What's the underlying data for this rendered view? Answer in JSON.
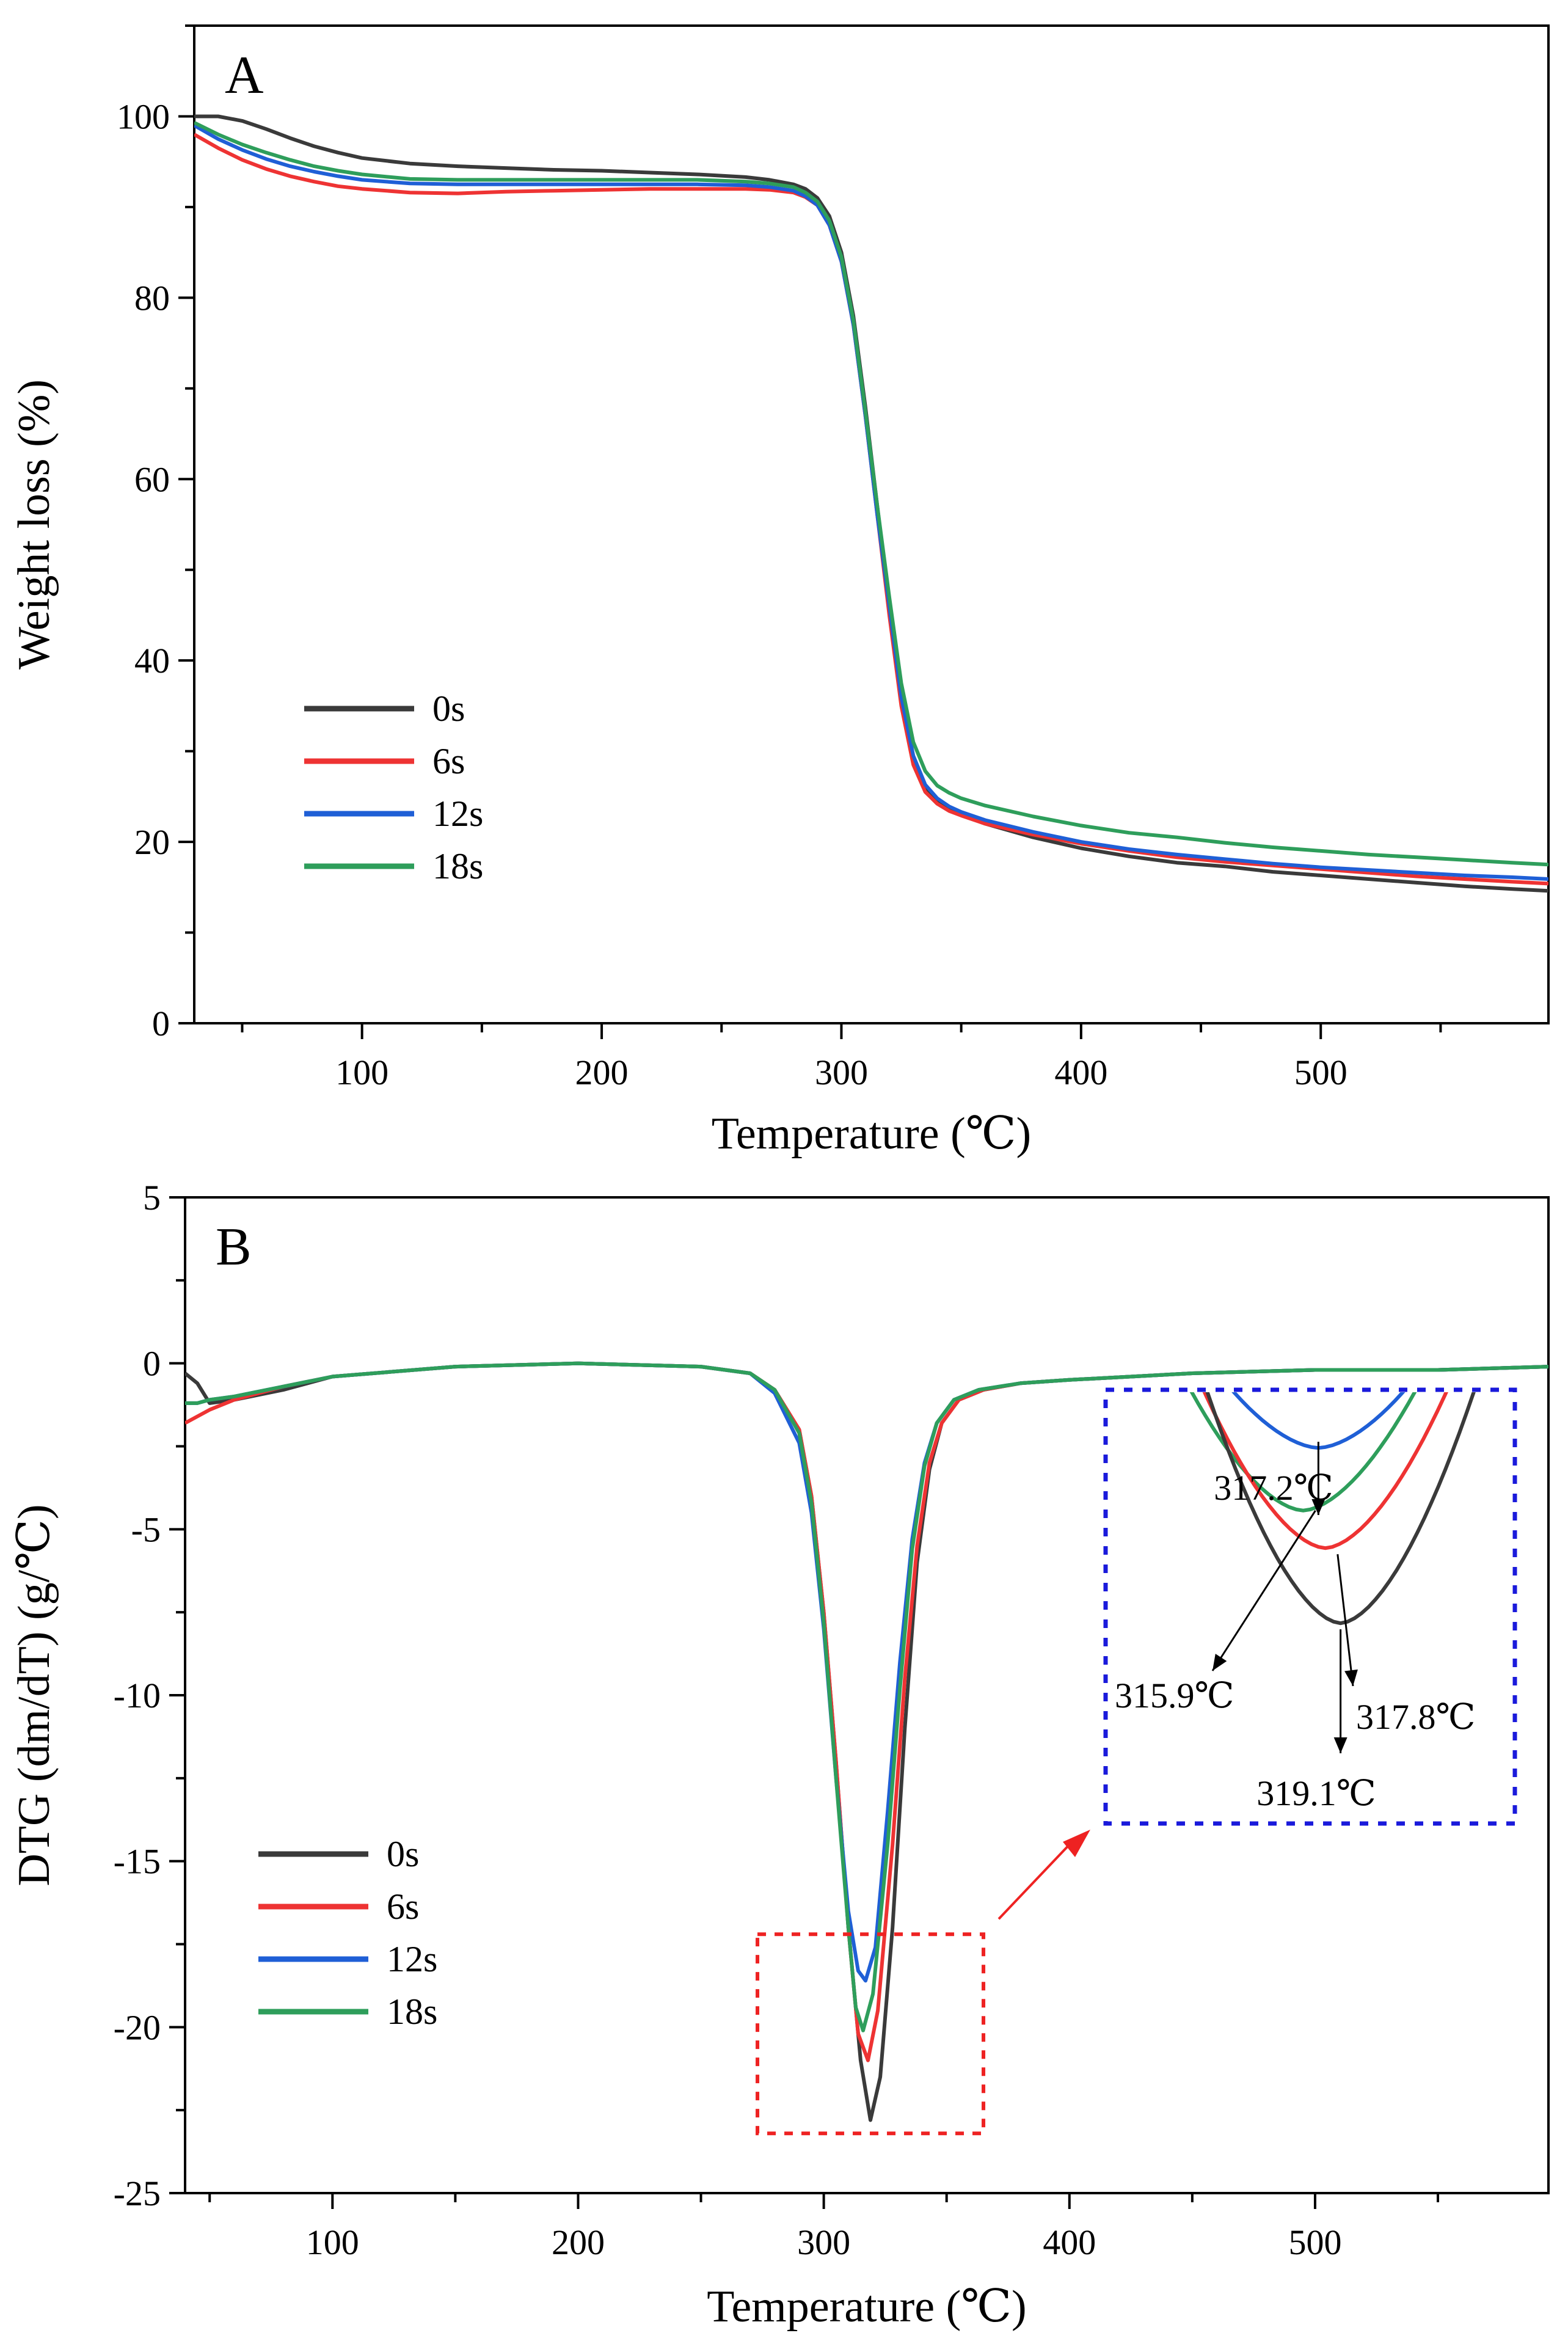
{
  "colors": {
    "0s": "#3a3a3a",
    "6s": "#ee3333",
    "12s": "#1f5fd6",
    "18s": "#2e9e5b",
    "zoom_box": "#ee2222",
    "inset_box": "#1a1adb"
  },
  "chart_data": [
    {
      "type": "line",
      "panel": "A",
      "title": "",
      "xlabel": "Temperature (℃)",
      "ylabel": "Weight loss (%)",
      "xlim": [
        30,
        595
      ],
      "ylim": [
        0,
        110
      ],
      "xticks": [
        100,
        200,
        300,
        400,
        500
      ],
      "yticks": [
        0,
        20,
        40,
        60,
        80,
        100
      ],
      "legend": {
        "placement": "lower-left",
        "entries": [
          "0s",
          "6s",
          "12s",
          "18s"
        ]
      },
      "series": [
        {
          "name": "0s",
          "color_key": "0s",
          "x": [
            30,
            40,
            50,
            60,
            70,
            80,
            90,
            100,
            120,
            140,
            160,
            180,
            200,
            220,
            240,
            260,
            270,
            280,
            285,
            290,
            295,
            300,
            305,
            310,
            315,
            320,
            325,
            330,
            335,
            340,
            345,
            350,
            360,
            380,
            400,
            420,
            440,
            460,
            480,
            500,
            520,
            540,
            560,
            580,
            595
          ],
          "y": [
            100,
            100,
            99.5,
            98.6,
            97.6,
            96.7,
            96,
            95.4,
            94.8,
            94.5,
            94.3,
            94.1,
            94,
            93.8,
            93.6,
            93.3,
            93,
            92.5,
            92,
            91,
            89,
            85,
            78,
            68,
            57,
            46,
            36,
            29,
            26,
            24.5,
            23.5,
            23,
            22,
            20.5,
            19.3,
            18.4,
            17.7,
            17.3,
            16.7,
            16.3,
            15.9,
            15.5,
            15.1,
            14.8,
            14.6
          ]
        },
        {
          "name": "6s",
          "color_key": "6s",
          "x": [
            30,
            40,
            50,
            60,
            70,
            80,
            90,
            100,
            120,
            140,
            160,
            180,
            200,
            220,
            240,
            260,
            270,
            280,
            285,
            290,
            295,
            300,
            305,
            310,
            315,
            320,
            325,
            330,
            335,
            340,
            345,
            350,
            360,
            380,
            400,
            420,
            440,
            460,
            480,
            500,
            520,
            540,
            560,
            580,
            595
          ],
          "y": [
            98,
            96.5,
            95.2,
            94.2,
            93.4,
            92.8,
            92.3,
            92,
            91.6,
            91.5,
            91.7,
            91.8,
            91.9,
            92,
            92,
            92,
            91.9,
            91.6,
            91.1,
            90.2,
            88,
            84,
            77,
            67,
            56,
            45,
            35,
            28.5,
            25.5,
            24.2,
            23.4,
            22.9,
            22,
            20.8,
            19.8,
            19,
            18.3,
            17.8,
            17.4,
            17,
            16.6,
            16.2,
            15.9,
            15.6,
            15.4
          ]
        },
        {
          "name": "12s",
          "color_key": "12s",
          "x": [
            30,
            40,
            50,
            60,
            70,
            80,
            90,
            100,
            120,
            140,
            160,
            180,
            200,
            220,
            240,
            260,
            270,
            280,
            285,
            290,
            295,
            300,
            305,
            310,
            315,
            320,
            325,
            330,
            335,
            340,
            345,
            350,
            360,
            380,
            400,
            420,
            440,
            460,
            480,
            500,
            520,
            540,
            560,
            580,
            595
          ],
          "y": [
            99,
            97.5,
            96.3,
            95.3,
            94.5,
            93.9,
            93.4,
            93,
            92.6,
            92.5,
            92.5,
            92.5,
            92.5,
            92.5,
            92.5,
            92.4,
            92.2,
            91.8,
            91.2,
            90.2,
            88,
            84,
            77,
            67,
            56,
            46,
            36,
            29.5,
            26.3,
            24.8,
            23.9,
            23.3,
            22.4,
            21.1,
            20,
            19.2,
            18.6,
            18.1,
            17.6,
            17.2,
            16.9,
            16.6,
            16.3,
            16.1,
            15.9
          ]
        },
        {
          "name": "18s",
          "color_key": "18s",
          "x": [
            30,
            40,
            50,
            60,
            70,
            80,
            90,
            100,
            120,
            140,
            160,
            180,
            200,
            220,
            240,
            260,
            270,
            280,
            285,
            290,
            295,
            300,
            305,
            310,
            315,
            320,
            325,
            330,
            335,
            340,
            345,
            350,
            360,
            380,
            400,
            420,
            440,
            460,
            480,
            500,
            520,
            540,
            560,
            580,
            595
          ],
          "y": [
            99.3,
            98,
            96.9,
            96,
            95.2,
            94.5,
            94,
            93.6,
            93.1,
            93,
            93,
            93,
            93,
            93,
            93,
            92.8,
            92.6,
            92.2,
            91.6,
            90.6,
            88.5,
            84.5,
            77.5,
            67.5,
            57,
            47,
            37.5,
            31,
            27.8,
            26.2,
            25.4,
            24.8,
            24,
            22.8,
            21.8,
            21,
            20.5,
            19.9,
            19.4,
            19,
            18.6,
            18.3,
            18,
            17.7,
            17.5
          ]
        }
      ]
    },
    {
      "type": "line",
      "panel": "B",
      "title": "",
      "xlabel": "Temperature (℃)",
      "ylabel": "DTG (dm/dT) (g/℃)",
      "xlim": [
        40,
        595
      ],
      "ylim": [
        -25,
        5
      ],
      "xticks": [
        100,
        200,
        300,
        400,
        500
      ],
      "yticks": [
        -25,
        -20,
        -15,
        -10,
        -5,
        0,
        5
      ],
      "legend": {
        "placement": "lower-left",
        "entries": [
          "0s",
          "6s",
          "12s",
          "18s"
        ]
      },
      "zoom_region": {
        "x": [
          273,
          365
        ],
        "y": [
          -23.2,
          -17.2
        ]
      },
      "series": [
        {
          "name": "0s",
          "color_key": "0s",
          "x": [
            40,
            45,
            50,
            60,
            80,
            100,
            150,
            200,
            250,
            270,
            280,
            290,
            295,
            300,
            305,
            310,
            315,
            319,
            323,
            328,
            333,
            338,
            343,
            348,
            355,
            365,
            380,
            400,
            450,
            500,
            550,
            595
          ],
          "y": [
            -0.3,
            -0.6,
            -1.2,
            -1.1,
            -0.8,
            -0.4,
            -0.1,
            0,
            -0.1,
            -0.3,
            -0.8,
            -2,
            -4,
            -7.5,
            -12,
            -17,
            -21,
            -22.8,
            -21.5,
            -17,
            -11,
            -6,
            -3.2,
            -1.8,
            -1.1,
            -0.8,
            -0.6,
            -0.5,
            -0.3,
            -0.2,
            -0.2,
            -0.1
          ]
        },
        {
          "name": "6s",
          "color_key": "6s",
          "x": [
            40,
            45,
            50,
            60,
            80,
            100,
            150,
            200,
            250,
            270,
            280,
            290,
            295,
            300,
            305,
            310,
            314,
            318,
            322,
            328,
            333,
            338,
            343,
            348,
            355,
            365,
            380,
            400,
            450,
            500,
            550,
            595
          ],
          "y": [
            -1.8,
            -1.6,
            -1.4,
            -1.1,
            -0.7,
            -0.4,
            -0.1,
            0,
            -0.1,
            -0.3,
            -0.8,
            -2,
            -4,
            -7.5,
            -12,
            -17,
            -20.2,
            -21,
            -19.5,
            -14.5,
            -9.5,
            -5.5,
            -3,
            -1.8,
            -1.1,
            -0.8,
            -0.6,
            -0.5,
            -0.3,
            -0.2,
            -0.2,
            -0.1
          ]
        },
        {
          "name": "12s",
          "color_key": "12s",
          "x": [
            40,
            45,
            50,
            60,
            80,
            100,
            150,
            200,
            250,
            270,
            280,
            290,
            295,
            300,
            305,
            310,
            314,
            317,
            321,
            326,
            331,
            336,
            341,
            346,
            353,
            363,
            380,
            400,
            450,
            500,
            550,
            595
          ],
          "y": [
            -1.2,
            -1.2,
            -1.1,
            -1,
            -0.7,
            -0.4,
            -0.1,
            0,
            -0.1,
            -0.3,
            -0.9,
            -2.4,
            -4.5,
            -8,
            -12.5,
            -16.5,
            -18.3,
            -18.6,
            -17.6,
            -13.5,
            -9,
            -5.3,
            -3,
            -1.8,
            -1.1,
            -0.8,
            -0.6,
            -0.5,
            -0.3,
            -0.2,
            -0.2,
            -0.1
          ]
        },
        {
          "name": "18s",
          "color_key": "18s",
          "x": [
            40,
            45,
            50,
            60,
            80,
            100,
            150,
            200,
            250,
            270,
            280,
            290,
            295,
            300,
            305,
            310,
            313,
            316,
            320,
            326,
            331,
            336,
            341,
            346,
            353,
            363,
            380,
            400,
            450,
            500,
            550,
            595
          ],
          "y": [
            -1.2,
            -1.2,
            -1.1,
            -1,
            -0.7,
            -0.4,
            -0.1,
            0,
            -0.1,
            -0.3,
            -0.8,
            -2.1,
            -4.2,
            -7.8,
            -12.5,
            -17,
            -19.4,
            -20.1,
            -19,
            -14.5,
            -9.8,
            -5.6,
            -3.1,
            -1.8,
            -1.1,
            -0.8,
            -0.6,
            -0.5,
            -0.3,
            -0.2,
            -0.2,
            -0.1
          ]
        }
      ],
      "inset": {
        "annotations": [
          {
            "series": "12s",
            "text": "317.2℃"
          },
          {
            "series": "18s",
            "text": "315.9℃"
          },
          {
            "series": "6s",
            "text": "317.8℃"
          },
          {
            "series": "0s",
            "text": "319.1℃"
          }
        ]
      }
    }
  ]
}
